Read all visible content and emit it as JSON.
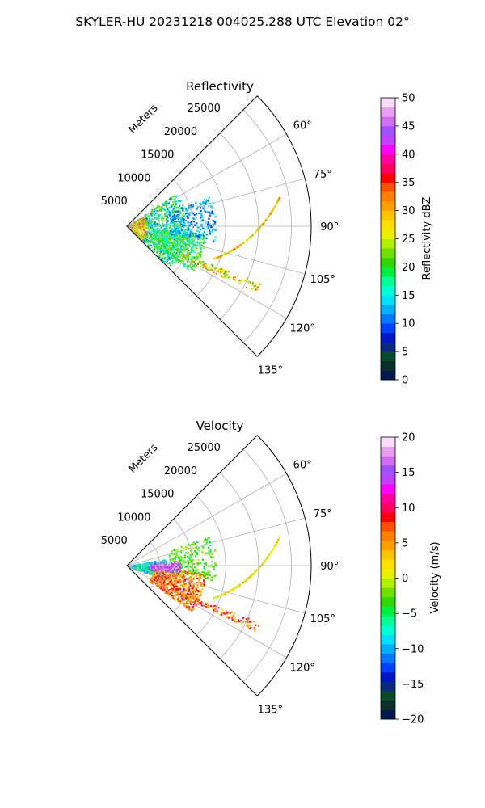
{
  "figure": {
    "suptitle": "SKYLER-HU  20231218  004025.288 UTC Elevation 02°"
  },
  "chart_data": [
    {
      "type": "heatmap",
      "title": "Reflectivity",
      "r_axis_label": "Meters",
      "r_ticks": [
        5000,
        10000,
        15000,
        20000,
        25000
      ],
      "r_tick_labels": [
        "5000",
        "10000",
        "15000",
        "20000",
        "25000"
      ],
      "rlim": [
        0,
        28000
      ],
      "theta_ticks": [
        60,
        75,
        90,
        105,
        120,
        135
      ],
      "theta_tick_labels": [
        "60°",
        "75°",
        "90°",
        "105°",
        "120°",
        "135°"
      ],
      "theta_range_deg": [
        45,
        135
      ],
      "grid": true,
      "colorbar": {
        "label": "Reflectivity dBZ",
        "min": 0,
        "max": 50,
        "ticks": [
          0,
          5,
          10,
          15,
          20,
          25,
          30,
          35,
          40,
          45,
          50
        ],
        "tick_labels": [
          "0",
          "5",
          "10",
          "15",
          "20",
          "25",
          "30",
          "35",
          "40",
          "45",
          "50"
        ],
        "colors": [
          "#001a4d",
          "#0b2f2a",
          "#0a4a2c",
          "#0a2a80",
          "#0018c8",
          "#0040ff",
          "#0078ff",
          "#00b0ff",
          "#00e0ff",
          "#00ffd0",
          "#00ff90",
          "#00f040",
          "#30d800",
          "#70e000",
          "#b0f000",
          "#e8f000",
          "#ffe000",
          "#ffc400",
          "#ffa000",
          "#ff8000",
          "#ff5000",
          "#ff0000",
          "#ff0060",
          "#ff00a0",
          "#ff00ff",
          "#c040ff",
          "#a050ff",
          "#d070f0",
          "#e8a0f0",
          "#f8dcf8"
        ]
      }
    },
    {
      "type": "heatmap",
      "title": "Velocity",
      "r_axis_label": "Meters",
      "r_ticks": [
        5000,
        10000,
        15000,
        20000,
        25000
      ],
      "r_tick_labels": [
        "5000",
        "10000",
        "15000",
        "20000",
        "25000"
      ],
      "rlim": [
        0,
        28000
      ],
      "theta_ticks": [
        60,
        75,
        90,
        105,
        120,
        135
      ],
      "theta_tick_labels": [
        "60°",
        "75°",
        "90°",
        "105°",
        "120°",
        "135°"
      ],
      "theta_range_deg": [
        45,
        135
      ],
      "grid": true,
      "colorbar": {
        "label": "Velocity (m/s)",
        "min": -20,
        "max": 20,
        "ticks": [
          -20,
          -15,
          -10,
          -5,
          0,
          5,
          10,
          15,
          20
        ],
        "tick_labels": [
          "−20",
          "−15",
          "−10",
          "−5",
          "0",
          "5",
          "10",
          "15",
          "20"
        ],
        "colors": [
          "#001a4d",
          "#0b2f2a",
          "#0a4a2c",
          "#0a2a80",
          "#0018c8",
          "#0040ff",
          "#0078ff",
          "#00b0ff",
          "#00e0ff",
          "#00ffd0",
          "#00ff90",
          "#00f040",
          "#30d800",
          "#70e000",
          "#b0f000",
          "#e8f000",
          "#ffe000",
          "#ffc400",
          "#ffa000",
          "#ff8000",
          "#ff5000",
          "#ff0000",
          "#ff0060",
          "#ff00a0",
          "#ff00ff",
          "#c040ff",
          "#a050ff",
          "#d070f0",
          "#e8a0f0",
          "#f8dcf8"
        ]
      }
    }
  ]
}
